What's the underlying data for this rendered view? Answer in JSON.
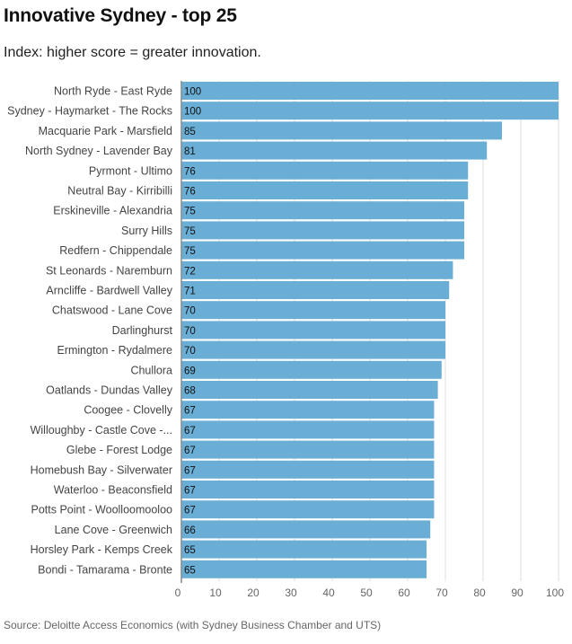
{
  "title": "Innovative Sydney - top 25",
  "subtitle": "Index: higher score = greater innovation.",
  "source": "Source: Deloitte Access Economics (with Sydney Business Chamber and UTS)",
  "colors": {
    "bar": "#6aaed6",
    "grid": "#dddddd",
    "axis": "#888888"
  },
  "chart_data": {
    "type": "bar",
    "orientation": "horizontal",
    "categories": [
      "North Ryde - East Ryde",
      "Sydney - Haymarket - The Rocks",
      "Macquarie Park - Marsfield",
      "North Sydney - Lavender Bay",
      "Pyrmont - Ultimo",
      "Neutral Bay - Kirribilli",
      "Erskineville - Alexandria",
      "Surry Hills",
      "Redfern - Chippendale",
      "St Leonards - Naremburn",
      "Arncliffe - Bardwell Valley",
      "Chatswood - Lane Cove",
      "Darlinghurst",
      "Ermington - Rydalmere",
      "Chullora",
      "Oatlands - Dundas Valley",
      "Coogee - Clovelly",
      "Willoughby - Castle Cove -...",
      "Glebe - Forest Lodge",
      "Homebush Bay - Silverwater",
      "Waterloo - Beaconsfield",
      "Potts Point - Woolloomooloo",
      "Lane Cove - Greenwich",
      "Horsley Park - Kemps Creek",
      "Bondi - Tamarama - Bronte"
    ],
    "values": [
      100,
      100,
      85,
      81,
      76,
      76,
      75,
      75,
      75,
      72,
      71,
      70,
      70,
      70,
      69,
      68,
      67,
      67,
      67,
      67,
      67,
      67,
      66,
      65,
      65
    ],
    "xlim": [
      0,
      100
    ],
    "xticks": [
      0,
      10,
      20,
      30,
      40,
      50,
      60,
      70,
      80,
      90,
      100
    ],
    "grid": true,
    "title": "Innovative Sydney - top 25",
    "xlabel": "",
    "ylabel": ""
  }
}
